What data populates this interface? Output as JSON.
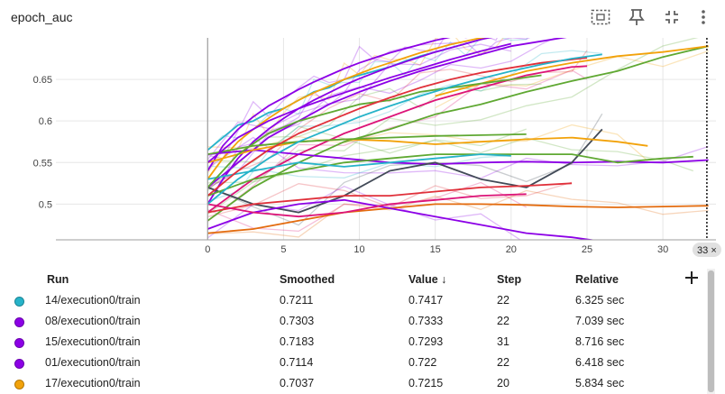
{
  "header": {
    "title": "epoch_auc",
    "icons": [
      "fit-to-data-icon",
      "pin-icon",
      "collapse-icon",
      "more-vert-icon"
    ]
  },
  "colors": {
    "cyan": "#26b3c9",
    "purple": "#8c00e6",
    "orange": "#f2a20a",
    "green": "#5fa832",
    "magenta": "#dc1478",
    "red": "#e0303a",
    "dark": "#424a57",
    "burnt": "#e36b0e"
  },
  "chart_data": {
    "type": "line",
    "title": "epoch_auc",
    "xlabel": "",
    "ylabel": "",
    "xlim": [
      -10,
      33.5
    ],
    "ylim": [
      0.457,
      0.7
    ],
    "x_ticks": [
      "0",
      "5",
      "10",
      "15",
      "20",
      "25",
      "30"
    ],
    "y_ticks": [
      "0.5",
      "0.55",
      "0.6",
      "0.65"
    ],
    "step_marker": {
      "x": 32.9,
      "label": "33 ×"
    },
    "series": [
      {
        "color": "#26b3c9",
        "x": [
          0,
          1,
          2,
          3,
          4,
          5,
          6,
          7,
          8,
          9,
          10,
          11,
          12,
          13,
          14,
          15,
          16,
          17,
          18,
          19,
          20,
          21,
          22
        ],
        "values": [
          0.565,
          0.58,
          0.595,
          0.6,
          0.61,
          0.615,
          0.625,
          0.635,
          0.64,
          0.65,
          0.655,
          0.66,
          0.665,
          0.672,
          0.678,
          0.683,
          0.688,
          0.693,
          0.698,
          0.703,
          0.71,
          0.716,
          0.7211
        ]
      },
      {
        "color": "#8c00e6",
        "x": [
          0,
          1,
          2,
          3,
          4,
          5,
          6,
          7,
          8,
          9,
          10,
          11,
          12,
          13,
          14,
          15,
          16,
          17,
          18,
          19,
          20,
          21,
          22
        ],
        "values": [
          0.54,
          0.57,
          0.59,
          0.605,
          0.618,
          0.628,
          0.638,
          0.647,
          0.655,
          0.663,
          0.67,
          0.676,
          0.682,
          0.687,
          0.692,
          0.697,
          0.701,
          0.706,
          0.71,
          0.714,
          0.718,
          0.723,
          0.7303
        ]
      },
      {
        "color": "#8c00e6",
        "x": [
          0,
          2,
          4,
          6,
          8,
          10,
          12,
          14,
          16,
          18,
          20,
          22,
          24,
          26,
          28,
          30,
          31
        ],
        "values": [
          0.52,
          0.55,
          0.58,
          0.6,
          0.62,
          0.635,
          0.648,
          0.66,
          0.67,
          0.68,
          0.69,
          0.696,
          0.702,
          0.708,
          0.712,
          0.716,
          0.7183
        ]
      },
      {
        "color": "#8c00e6",
        "x": [
          0,
          1,
          2,
          3,
          4,
          5,
          6,
          7,
          8,
          9,
          10,
          11,
          12,
          13,
          14,
          15,
          16,
          17,
          18,
          19,
          20,
          21,
          22
        ],
        "values": [
          0.5,
          0.53,
          0.555,
          0.575,
          0.59,
          0.603,
          0.615,
          0.625,
          0.634,
          0.643,
          0.651,
          0.658,
          0.665,
          0.671,
          0.677,
          0.683,
          0.688,
          0.693,
          0.698,
          0.702,
          0.706,
          0.71,
          0.7114
        ]
      },
      {
        "color": "#f2a20a",
        "x": [
          0,
          1,
          2,
          3,
          4,
          5,
          6,
          7,
          8,
          9,
          10,
          11,
          12,
          13,
          14,
          15,
          16,
          17,
          18,
          19,
          20
        ],
        "values": [
          0.53,
          0.555,
          0.575,
          0.59,
          0.603,
          0.615,
          0.625,
          0.634,
          0.642,
          0.65,
          0.657,
          0.664,
          0.67,
          0.676,
          0.682,
          0.687,
          0.692,
          0.696,
          0.7,
          0.703,
          0.7037
        ]
      },
      {
        "color": "#5fa832",
        "x": [
          0,
          3,
          6,
          9,
          12,
          15,
          18,
          21,
          24,
          27,
          30,
          33
        ],
        "values": [
          0.48,
          0.52,
          0.55,
          0.575,
          0.59,
          0.608,
          0.62,
          0.635,
          0.648,
          0.66,
          0.677,
          0.69
        ]
      },
      {
        "color": "#f2a20a",
        "x": [
          15,
          18,
          21,
          24,
          27,
          30,
          33
        ],
        "values": [
          0.63,
          0.645,
          0.66,
          0.67,
          0.678,
          0.683,
          0.69
        ]
      },
      {
        "color": "#dc1478",
        "x": [
          0,
          3,
          6,
          9,
          12,
          15,
          18,
          21,
          24,
          25
        ],
        "values": [
          0.49,
          0.53,
          0.56,
          0.585,
          0.605,
          0.625,
          0.64,
          0.655,
          0.665,
          0.666
        ]
      },
      {
        "color": "#e36b0e",
        "x": [
          0,
          3,
          6,
          9,
          12,
          15,
          18,
          21,
          24,
          27,
          30,
          33
        ],
        "values": [
          0.465,
          0.47,
          0.48,
          0.49,
          0.495,
          0.5,
          0.5,
          0.499,
          0.497,
          0.496,
          0.497,
          0.498
        ]
      },
      {
        "color": "#8c00e6",
        "x": [
          0,
          3,
          6,
          9,
          12,
          15,
          18,
          21,
          24,
          27,
          30,
          33
        ],
        "values": [
          0.56,
          0.565,
          0.56,
          0.555,
          0.55,
          0.548,
          0.55,
          0.551,
          0.55,
          0.551,
          0.55,
          0.553
        ]
      },
      {
        "color": "#424a57",
        "x": [
          0,
          3,
          6,
          9,
          12,
          15,
          18,
          21,
          24,
          26
        ],
        "values": [
          0.52,
          0.5,
          0.49,
          0.51,
          0.54,
          0.55,
          0.53,
          0.52,
          0.55,
          0.59
        ]
      },
      {
        "color": "#5fa832",
        "x": [
          0,
          3,
          6,
          9,
          12,
          15,
          18,
          21,
          24,
          27,
          30,
          32
        ],
        "values": [
          0.51,
          0.53,
          0.54,
          0.55,
          0.555,
          0.56,
          0.56,
          0.56,
          0.56,
          0.55,
          0.555,
          0.557
        ]
      },
      {
        "color": "#f2a20a",
        "x": [
          0,
          3,
          6,
          9,
          12,
          15,
          18,
          21,
          24,
          27,
          29
        ],
        "values": [
          0.55,
          0.565,
          0.575,
          0.578,
          0.576,
          0.572,
          0.575,
          0.578,
          0.58,
          0.575,
          0.57
        ]
      },
      {
        "color": "#e0303a",
        "x": [
          0,
          3,
          6,
          9,
          12,
          15,
          18,
          21,
          24
        ],
        "values": [
          0.49,
          0.5,
          0.505,
          0.51,
          0.51,
          0.515,
          0.52,
          0.522,
          0.525
        ]
      },
      {
        "color": "#5fa832",
        "x": [
          0,
          3,
          6,
          9,
          12,
          15,
          18,
          21
        ],
        "values": [
          0.56,
          0.57,
          0.575,
          0.578,
          0.58,
          0.582,
          0.583,
          0.584
        ]
      },
      {
        "color": "#8c00e6",
        "x": [
          0,
          3,
          6,
          9,
          12,
          15,
          18,
          21,
          24,
          26
        ],
        "values": [
          0.47,
          0.49,
          0.5,
          0.505,
          0.495,
          0.485,
          0.475,
          0.465,
          0.46,
          0.455
        ]
      },
      {
        "color": "#26b3c9",
        "x": [
          0,
          3,
          6,
          9,
          12,
          15,
          18,
          20
        ],
        "values": [
          0.53,
          0.54,
          0.55,
          0.545,
          0.55,
          0.555,
          0.56,
          0.558
        ]
      },
      {
        "color": "#dc1478",
        "x": [
          0,
          3,
          6,
          9,
          12,
          15,
          18,
          21
        ],
        "values": [
          0.5,
          0.49,
          0.485,
          0.49,
          0.5,
          0.505,
          0.51,
          0.512
        ]
      },
      {
        "color": "#5fa832",
        "x": [
          0,
          2,
          4,
          6,
          8,
          10,
          12,
          14,
          16,
          18,
          20,
          22
        ],
        "values": [
          0.52,
          0.56,
          0.585,
          0.6,
          0.61,
          0.62,
          0.625,
          0.635,
          0.64,
          0.645,
          0.65,
          0.655
        ]
      },
      {
        "color": "#e0303a",
        "x": [
          0,
          2,
          4,
          6,
          8,
          10,
          12,
          14,
          16,
          18,
          20,
          22,
          24,
          25
        ],
        "values": [
          0.51,
          0.54,
          0.565,
          0.585,
          0.6,
          0.615,
          0.628,
          0.64,
          0.65,
          0.658,
          0.664,
          0.67,
          0.674,
          0.676
        ]
      },
      {
        "color": "#8c00e6",
        "x": [
          0,
          2,
          4,
          6,
          8,
          10,
          12,
          14,
          16,
          18,
          20
        ],
        "values": [
          0.55,
          0.58,
          0.6,
          0.615,
          0.628,
          0.64,
          0.652,
          0.663,
          0.674,
          0.684,
          0.693
        ]
      },
      {
        "color": "#26b3c9",
        "x": [
          0,
          2,
          4,
          6,
          8,
          10,
          12,
          14,
          16,
          18,
          20,
          22,
          24,
          26
        ],
        "values": [
          0.5,
          0.53,
          0.555,
          0.575,
          0.59,
          0.605,
          0.618,
          0.63,
          0.641,
          0.651,
          0.66,
          0.668,
          0.675,
          0.68
        ]
      }
    ]
  },
  "table": {
    "headers": {
      "run": "Run",
      "smoothed": "Smoothed",
      "value": "Value ↓",
      "step": "Step",
      "relative": "Relative"
    },
    "rows": [
      {
        "color": "#26b3c9",
        "run": "14/execution0/train",
        "smoothed": "0.7211",
        "value": "0.7417",
        "step": "22",
        "relative": "6.325 sec"
      },
      {
        "color": "#8c00e6",
        "run": "08/execution0/train",
        "smoothed": "0.7303",
        "value": "0.7333",
        "step": "22",
        "relative": "7.039 sec"
      },
      {
        "color": "#8c00e6",
        "run": "15/execution0/train",
        "smoothed": "0.7183",
        "value": "0.7293",
        "step": "31",
        "relative": "8.716 sec"
      },
      {
        "color": "#8c00e6",
        "run": "01/execution0/train",
        "smoothed": "0.7114",
        "value": "0.722",
        "step": "22",
        "relative": "6.418 sec"
      },
      {
        "color": "#f2a20a",
        "run": "17/execution0/train",
        "smoothed": "0.7037",
        "value": "0.7215",
        "step": "20",
        "relative": "5.834 sec"
      }
    ]
  }
}
